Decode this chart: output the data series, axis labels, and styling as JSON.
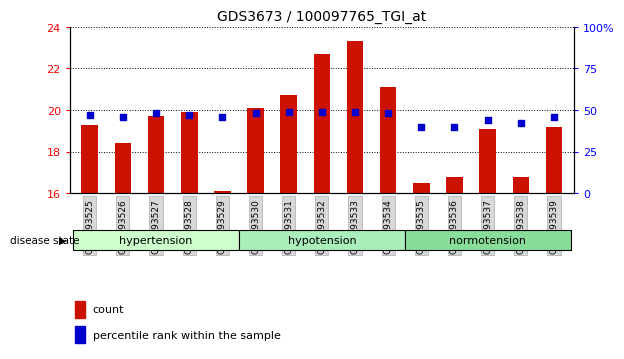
{
  "title": "GDS3673 / 100097765_TGI_at",
  "samples": [
    "GSM493525",
    "GSM493526",
    "GSM493527",
    "GSM493528",
    "GSM493529",
    "GSM493530",
    "GSM493531",
    "GSM493532",
    "GSM493533",
    "GSM493534",
    "GSM493535",
    "GSM493536",
    "GSM493537",
    "GSM493538",
    "GSM493539"
  ],
  "count_values": [
    19.3,
    18.4,
    19.7,
    19.9,
    16.1,
    20.1,
    20.7,
    22.7,
    23.3,
    21.1,
    16.5,
    16.8,
    19.1,
    16.8,
    19.2
  ],
  "percentile_values": [
    47,
    46,
    48,
    47,
    46,
    48,
    49,
    49,
    49,
    48,
    40,
    40,
    44,
    42,
    46
  ],
  "ylim_left": [
    16,
    24
  ],
  "ylim_right": [
    0,
    100
  ],
  "yticks_left": [
    16,
    18,
    20,
    22,
    24
  ],
  "yticks_right": [
    0,
    25,
    50,
    75,
    100
  ],
  "bar_color": "#cc1100",
  "dot_color": "#0000cc",
  "groups": [
    {
      "label": "hypertension",
      "start": 0,
      "end": 5
    },
    {
      "label": "hypotension",
      "start": 5,
      "end": 10
    },
    {
      "label": "normotension",
      "start": 10,
      "end": 15
    }
  ],
  "group_bg_colors": [
    "#ccffcc",
    "#aaeebb",
    "#88dd99"
  ],
  "disease_state_label": "disease state",
  "legend_count": "count",
  "legend_percentile": "percentile rank within the sample",
  "bar_width": 0.5
}
